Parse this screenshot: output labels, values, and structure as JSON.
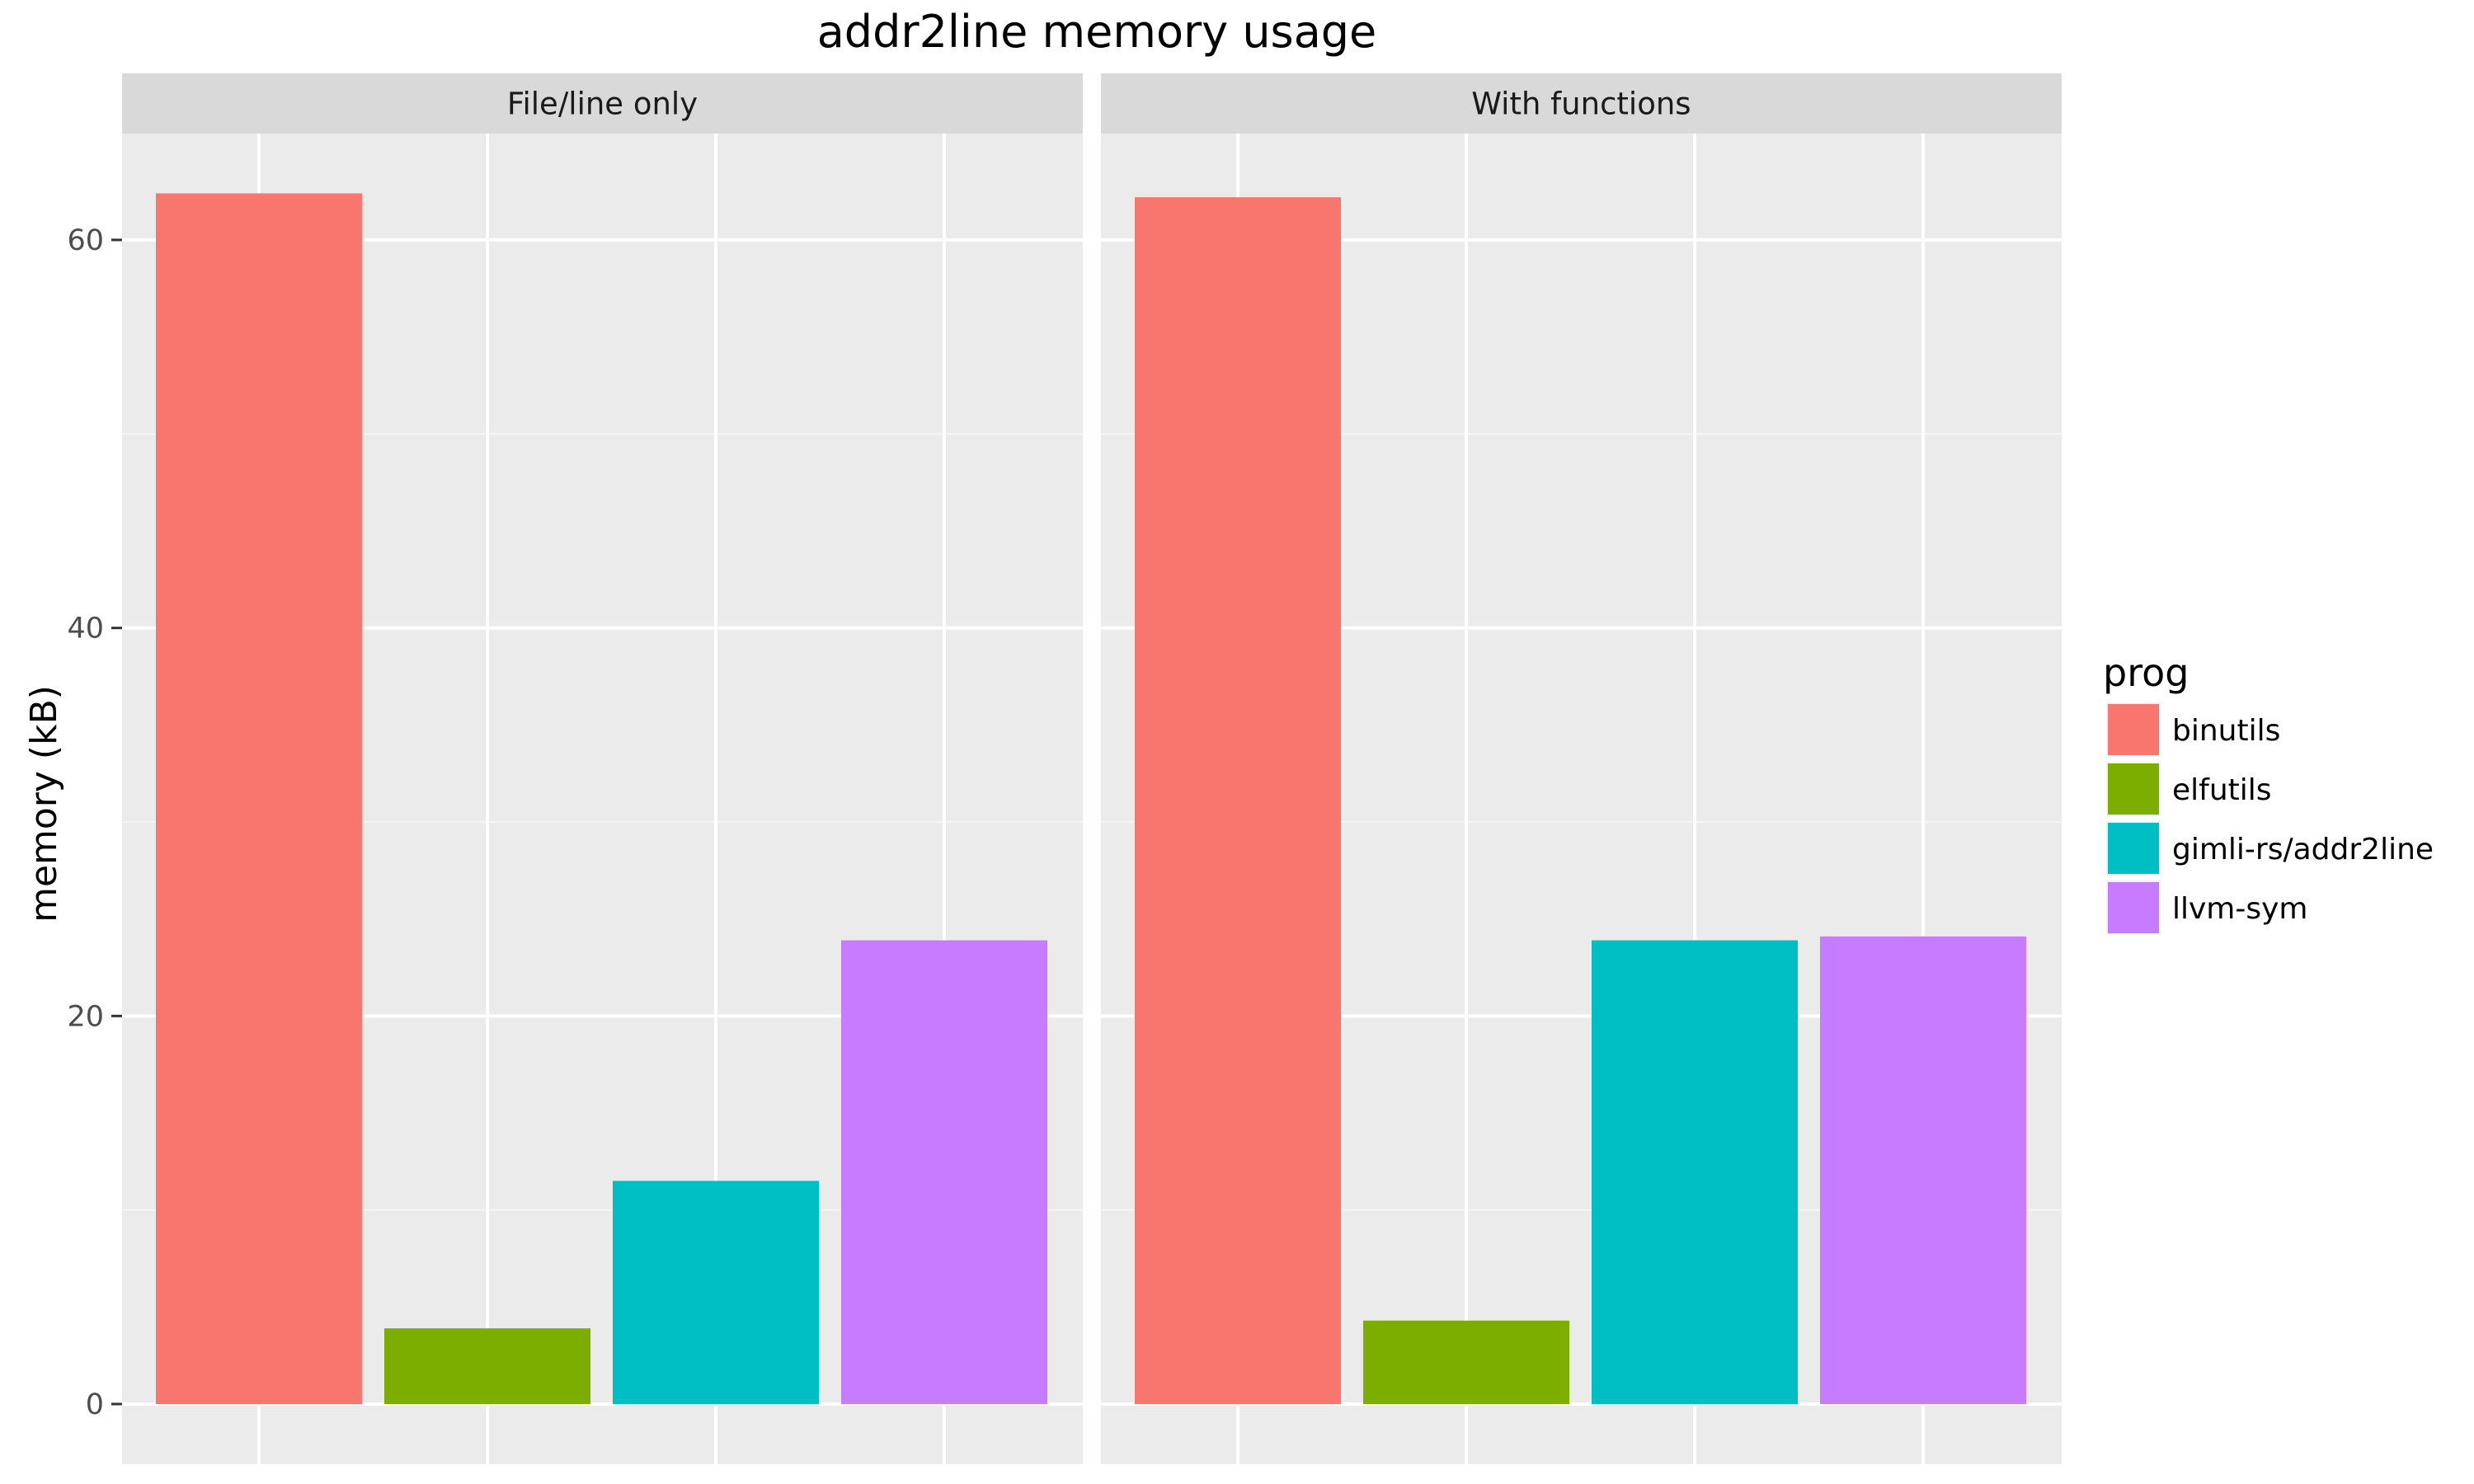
{
  "chart_data": {
    "type": "bar",
    "title": "addr2line memory usage",
    "xlabel": "",
    "ylabel": "memory (kB)",
    "ylim": [
      0,
      66
    ],
    "yticks": [
      "0",
      "20",
      "40",
      "60"
    ],
    "categories": [
      "binutils",
      "elfutils",
      "gimli-rs/addr2line",
      "llvm-sym"
    ],
    "colors": [
      "#F8766D",
      "#7CAE00",
      "#00BFC4",
      "#C77CFF"
    ],
    "legend": {
      "title": "prog",
      "position": "right",
      "entries": [
        "binutils",
        "elfutils",
        "gimli-rs/addr2line",
        "llvm-sym"
      ]
    },
    "grid": true,
    "facets": [
      {
        "label": "File/line only",
        "values": [
          62.4,
          3.9,
          11.5,
          23.9
        ]
      },
      {
        "label": "With functions",
        "values": [
          62.2,
          4.3,
          23.9,
          24.1
        ]
      }
    ]
  }
}
